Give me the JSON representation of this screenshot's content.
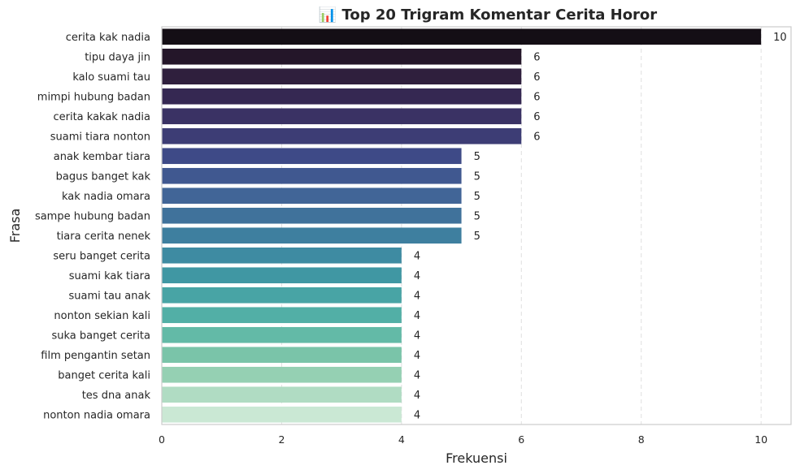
{
  "chart_data": {
    "type": "bar",
    "orientation": "horizontal",
    "title": "📊 Top 20 Trigram Komentar Cerita Horor",
    "xlabel": "Frekuensi",
    "ylabel": "Frasa",
    "xlim": [
      0,
      10.5
    ],
    "xticks": [
      0,
      2,
      4,
      6,
      8,
      10
    ],
    "grid": "vertical dashed",
    "colormap": "mako_r",
    "categories": [
      "cerita kak nadia",
      "tipu daya jin",
      "kalo suami tau",
      "mimpi hubung badan",
      "cerita kakak nadia",
      "suami tiara nonton",
      "anak kembar tiara",
      "bagus banget kak",
      "kak nadia omara",
      "sampe hubung badan",
      "tiara cerita nenek",
      "seru banget cerita",
      "suami kak tiara",
      "suami tau anak",
      "nonton sekian kali",
      "suka banget cerita",
      "film pengantin setan",
      "banget cerita kali",
      "tes dna anak",
      "nonton nadia omara"
    ],
    "values": [
      10,
      6,
      6,
      6,
      6,
      6,
      5,
      5,
      5,
      5,
      5,
      4,
      4,
      4,
      4,
      4,
      4,
      4,
      4,
      4
    ],
    "colors": [
      "#140e15",
      "#241629",
      "#2f1f3d",
      "#352852",
      "#3a3264",
      "#3d3d75",
      "#3e4a87",
      "#405890",
      "#416597",
      "#40729b",
      "#3e7f9f",
      "#3e8ba2",
      "#4097a3",
      "#48a4a5",
      "#52afa6",
      "#63baa7",
      "#7ac4a9",
      "#95d0b3",
      "#b0dcc3",
      "#cae8d4"
    ]
  }
}
